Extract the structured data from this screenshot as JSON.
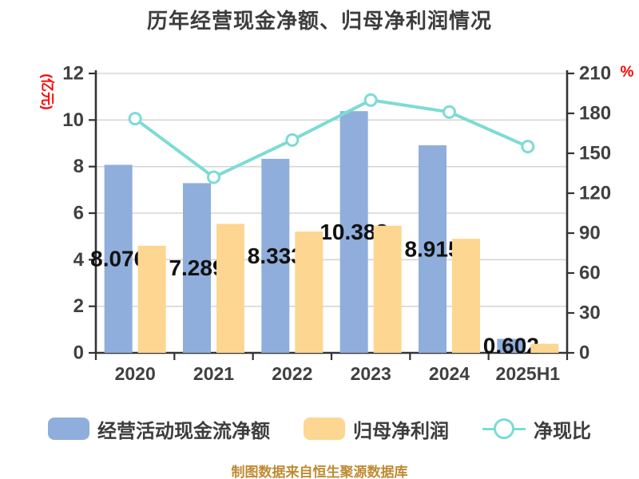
{
  "title": "历年经营现金净额、归母净利润情况",
  "footer": "制图数据来自恒生聚源数据库",
  "colors": {
    "bar_cash": "#8FAEDC",
    "bar_profit": "#FDD691",
    "line_ratio": "#7CDBD5",
    "grid": "#D6D6D6",
    "axis": "#333333",
    "tick_text": "#404040",
    "value_label": "#111111",
    "axis_unit": "#FF0000",
    "footer_text": "#BE8B32",
    "background": "#FFFFFF"
  },
  "chart_data": {
    "type": "bar",
    "subtype": "grouped-bars-with-line",
    "title": "历年经营现金净额、归母净利润情况",
    "categories": [
      "2020",
      "2021",
      "2022",
      "2023",
      "2024",
      "2025H1"
    ],
    "series": [
      {
        "name": "经营活动现金流净额",
        "type": "bar",
        "axis": "left",
        "color": "#8FAEDC",
        "values": [
          8.076,
          7.289,
          8.333,
          10.382,
          8.915,
          0.602
        ],
        "data_labels": [
          "8.076",
          "7.289",
          "8.333",
          "10.382",
          "8.915",
          "0.602"
        ]
      },
      {
        "name": "归母净利润",
        "type": "bar",
        "axis": "left",
        "color": "#FDD691",
        "values": [
          4.6,
          5.54,
          5.21,
          5.46,
          4.9,
          0.39
        ]
      },
      {
        "name": "净现比",
        "type": "line",
        "axis": "right",
        "color": "#7CDBD5",
        "marker": "circle-white-fill",
        "values": [
          176,
          132,
          160,
          190,
          181,
          155
        ]
      }
    ],
    "left_axis": {
      "name": "(亿元)",
      "min": 0,
      "max": 12,
      "step": 2
    },
    "right_axis": {
      "name": "%",
      "min": 0,
      "max": 210,
      "step": 30
    },
    "grid": true,
    "legend_position": "bottom"
  },
  "legend": {
    "items": [
      {
        "label": "经营活动现金流净额"
      },
      {
        "label": "归母净利润"
      },
      {
        "label": "净现比"
      }
    ]
  }
}
